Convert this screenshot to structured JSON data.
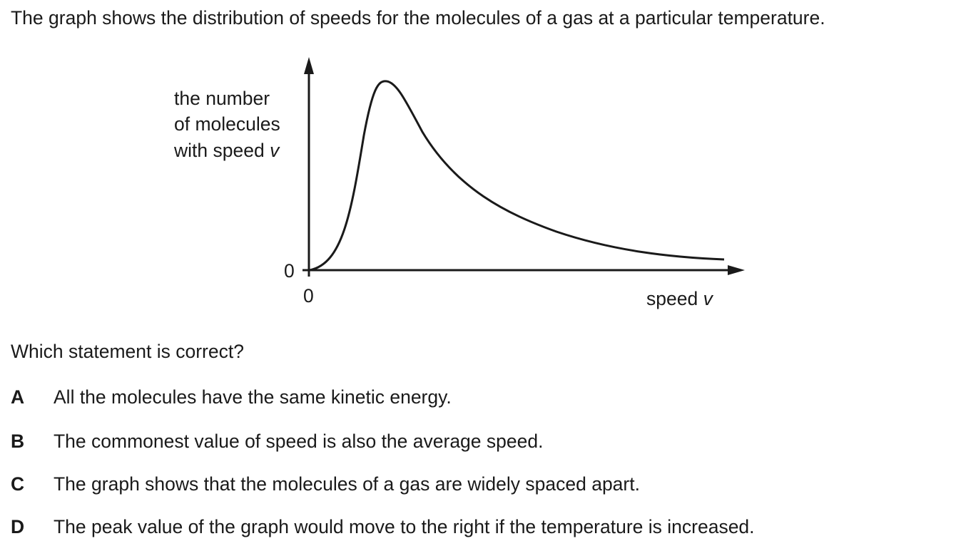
{
  "intro": "The graph shows the distribution of speeds for the molecules of a gas at a particular temperature.",
  "graph": {
    "y_label_lines": [
      "the number",
      "of molecules",
      "with speed"
    ],
    "y_label_var": "v",
    "x_label": "speed",
    "x_label_var": "v",
    "x_origin": "0",
    "y_origin": "0"
  },
  "question": "Which statement is correct?",
  "options": [
    {
      "letter": "A",
      "text": "All the molecules have the same kinetic energy."
    },
    {
      "letter": "B",
      "text": "The commonest value of speed is also the average speed."
    },
    {
      "letter": "C",
      "text": "The graph shows that the molecules of a gas are widely spaced apart."
    },
    {
      "letter": "D",
      "text": "The peak value of the graph would move to the right if the temperature is increased."
    }
  ]
}
